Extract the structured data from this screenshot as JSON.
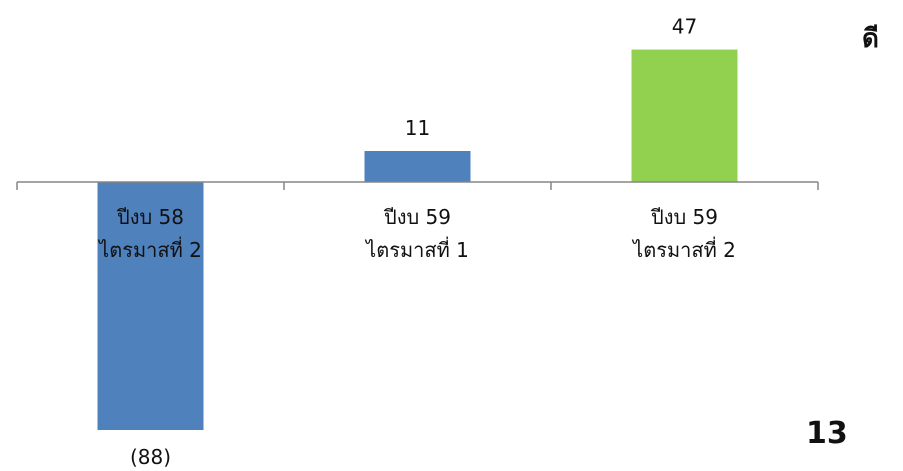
{
  "chart_data": {
    "type": "bar",
    "categories": [
      [
        "ปีงบ 58",
        "ไตรมาสที่ 2"
      ],
      [
        "ปีงบ 59",
        "ไตรมาสที่ 1"
      ],
      [
        "ปีงบ 59",
        "ไตรมาสที่ 2"
      ]
    ],
    "values": [
      -88,
      11,
      47
    ],
    "data_labels": [
      "(88)",
      "11",
      "47"
    ],
    "colors": [
      "#4f81bd",
      "#4f81bd",
      "#92d050"
    ],
    "axis_color": "#868686",
    "ylim": [
      -88,
      47
    ],
    "grid": false,
    "title": "",
    "xlabel": "",
    "ylabel": ""
  },
  "side_label": "ดี",
  "page_number": "13"
}
